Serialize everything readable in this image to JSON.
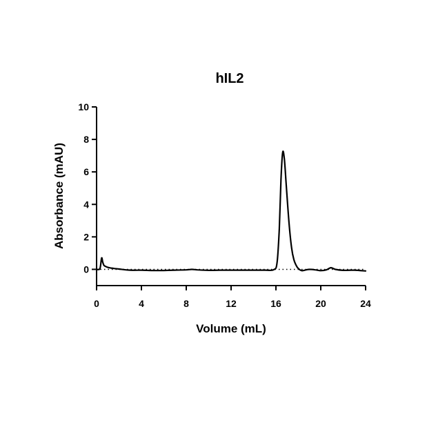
{
  "chart_data": {
    "type": "line",
    "title": "hIL2",
    "xlabel": "Volume (mL)",
    "ylabel": "Absorbance (mAU)",
    "xlim": [
      0,
      24
    ],
    "ylim": [
      -1,
      10
    ],
    "xticks": [
      0,
      4,
      8,
      12,
      16,
      20,
      24
    ],
    "yticks": [
      0,
      2,
      4,
      6,
      8,
      10
    ],
    "baseline_y": 0,
    "grid": false,
    "series": [
      {
        "x": [
          0.0,
          0.3,
          0.45,
          0.55,
          0.65,
          0.8,
          1.0,
          1.3,
          1.6,
          2.0,
          3.0,
          4.0,
          5.0,
          6.0,
          7.0,
          8.0,
          8.5,
          9.0,
          10.0,
          11.0,
          12.0,
          13.0,
          14.0,
          15.0,
          15.8,
          16.1,
          16.3,
          16.45,
          16.6,
          16.75,
          16.9,
          17.05,
          17.2,
          17.4,
          17.6,
          17.8,
          18.0,
          18.3,
          18.7,
          19.0,
          19.5,
          20.0,
          20.5,
          20.9,
          21.3,
          22.0,
          23.0,
          24.0
        ],
        "y": [
          0.0,
          0.05,
          0.7,
          0.45,
          0.25,
          0.18,
          0.12,
          0.08,
          0.05,
          0.02,
          -0.05,
          -0.05,
          -0.07,
          -0.07,
          -0.05,
          -0.03,
          0.0,
          -0.03,
          -0.06,
          -0.05,
          -0.05,
          -0.05,
          -0.05,
          -0.05,
          -0.02,
          0.4,
          2.5,
          5.5,
          7.2,
          6.8,
          5.4,
          3.9,
          2.6,
          1.3,
          0.6,
          0.25,
          0.05,
          -0.08,
          -0.03,
          0.0,
          -0.03,
          -0.08,
          -0.03,
          0.1,
          0.0,
          -0.06,
          -0.05,
          -0.1
        ]
      }
    ]
  }
}
